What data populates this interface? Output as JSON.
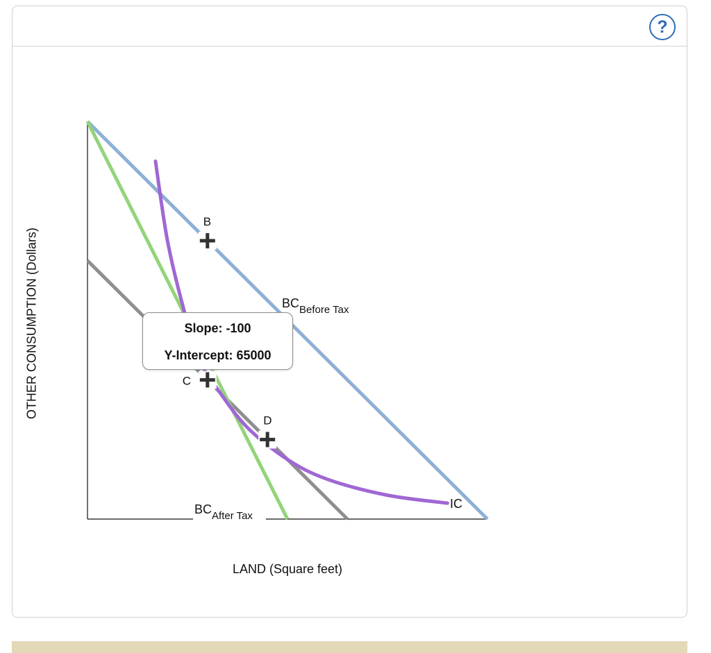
{
  "help_button": {
    "icon": "question-circle-icon",
    "label": "?",
    "color": "#2d6db5"
  },
  "chart_data": {
    "type": "line",
    "title": "",
    "xlabel": "LAND (Square feet)",
    "ylabel": "OTHER CONSUMPTION (Dollars)",
    "axis_tick_labels": "none",
    "grid": false,
    "series": [
      {
        "name": "BC_Before Tax",
        "label_main": "BC",
        "label_sub": "Before Tax",
        "color": "#8eb0d6",
        "points": [
          [
            0,
            100
          ],
          [
            100,
            0
          ]
        ]
      },
      {
        "name": "BC_After Tax",
        "label_main": "BC",
        "label_sub": "After Tax",
        "color": "#92d47a",
        "points": [
          [
            0,
            100
          ],
          [
            50,
            0
          ]
        ]
      },
      {
        "name": "",
        "color": "#8f8f8f",
        "points": [
          [
            0,
            65
          ],
          [
            65,
            0
          ]
        ]
      },
      {
        "name": "IC",
        "label_main": "IC",
        "color": "#a067d4",
        "points": [
          [
            17,
            90
          ],
          [
            20,
            70
          ],
          [
            24,
            53
          ],
          [
            28,
            40
          ],
          [
            33,
            32
          ],
          [
            40,
            23
          ],
          [
            50,
            15
          ],
          [
            60,
            10
          ],
          [
            75,
            6
          ],
          [
            90,
            4
          ]
        ]
      }
    ],
    "points": [
      {
        "label": "B",
        "x": 30,
        "y": 70
      },
      {
        "label": "C",
        "x": 30,
        "y": 35
      },
      {
        "label": "D",
        "x": 45,
        "y": 20
      }
    ],
    "tooltip": {
      "line1": "Slope: -100",
      "line2": "Y-Intercept: 65000"
    }
  }
}
